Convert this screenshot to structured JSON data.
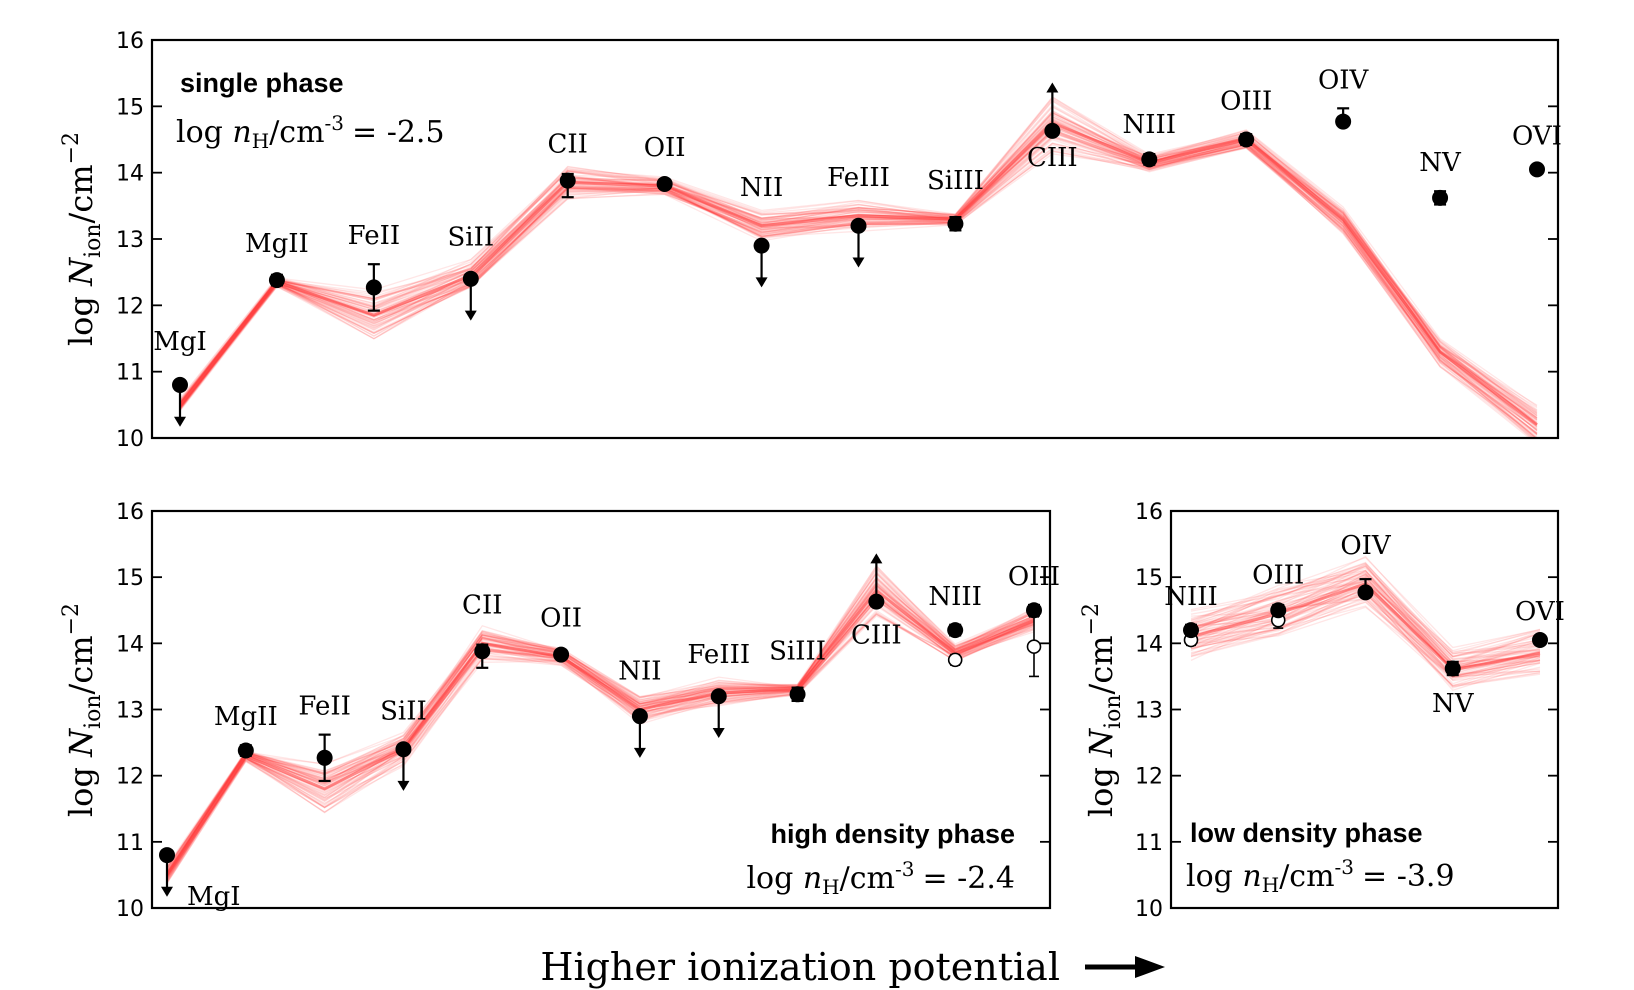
{
  "x_axis_label": "Higher ionization potential",
  "chart_data": [
    {
      "id": "single",
      "type": "line",
      "title": "single phase",
      "density_label": "log nH/cm-3 = -2.5",
      "density_prefix": "log ",
      "density_n": "n",
      "density_sub": "H",
      "density_unit": "/cm",
      "density_exp": "-3",
      "density_value": "= -2.5",
      "ylabel": "log N_ion/cm^-2",
      "ylim": [
        10,
        16
      ],
      "yticks": [
        "10",
        "11",
        "12",
        "13",
        "14",
        "15",
        "16"
      ],
      "ions": [
        "MgI",
        "MgII",
        "FeII",
        "SiII",
        "CII",
        "OII",
        "NII",
        "FeIII",
        "SiIII",
        "CIII",
        "NIII",
        "OIII",
        "OIV",
        "NV",
        "OVI"
      ],
      "observed": [
        10.8,
        12.38,
        12.27,
        12.4,
        13.88,
        13.83,
        12.9,
        13.2,
        13.23,
        14.63,
        14.2,
        14.5,
        14.77,
        13.62,
        14.05
      ],
      "err_lo": [
        0,
        0.08,
        0.35,
        0,
        0.25,
        0.05,
        0,
        0,
        0.1,
        0,
        0.08,
        0.08,
        0,
        0.1,
        0
      ],
      "err_hi": [
        0,
        0.08,
        0.35,
        0,
        0.1,
        0.05,
        0,
        0,
        0.1,
        0,
        0.08,
        0.08,
        0.2,
        0.1,
        0
      ],
      "limit": [
        "upper",
        "",
        "",
        "upper",
        "",
        "",
        "upper",
        "upper",
        "",
        "lower",
        "",
        "",
        "",
        "",
        ""
      ],
      "model_median": [
        10.5,
        12.35,
        11.85,
        12.45,
        13.85,
        13.8,
        13.2,
        13.35,
        13.3,
        14.75,
        14.15,
        14.5,
        13.3,
        11.3,
        10.2
      ],
      "model_spread": [
        0.1,
        0.08,
        0.45,
        0.25,
        0.3,
        0.15,
        0.25,
        0.25,
        0.1,
        0.5,
        0.15,
        0.15,
        0.25,
        0.25,
        0.35
      ],
      "label_pos": [
        "above",
        "above",
        "above",
        "above",
        "above",
        "above",
        "above",
        "above",
        "above",
        "below",
        "above",
        "above",
        "above",
        "above",
        "above"
      ]
    },
    {
      "id": "high",
      "type": "line",
      "title": "high density phase",
      "density_prefix": "log ",
      "density_n": "n",
      "density_sub": "H",
      "density_unit": "/cm",
      "density_exp": "-3",
      "density_value": "= -2.4",
      "ylabel": "log N_ion/cm^-2",
      "ylim": [
        10,
        16
      ],
      "yticks": [
        "10",
        "11",
        "12",
        "13",
        "14",
        "15",
        "16"
      ],
      "ions": [
        "MgI",
        "MgII",
        "FeII",
        "SiII",
        "CII",
        "OII",
        "NII",
        "FeIII",
        "SiIII",
        "CIII",
        "NIII",
        "OIII"
      ],
      "observed": [
        10.8,
        12.38,
        12.27,
        12.4,
        13.88,
        13.83,
        12.9,
        13.2,
        13.23,
        14.63,
        14.2,
        14.5
      ],
      "err_lo": [
        0,
        0.08,
        0.35,
        0,
        0.25,
        0.05,
        0,
        0,
        0.1,
        0,
        0.08,
        0.08
      ],
      "err_hi": [
        0,
        0.08,
        0.35,
        0,
        0.1,
        0.05,
        0,
        0,
        0.1,
        0,
        0.08,
        0.08
      ],
      "limit": [
        "upper",
        "",
        "",
        "upper",
        "",
        "",
        "upper",
        "upper",
        "",
        "lower",
        "",
        ""
      ],
      "open_points": [
        null,
        null,
        null,
        null,
        null,
        null,
        null,
        null,
        null,
        null,
        13.75,
        13.95
      ],
      "open_err": [
        0,
        0,
        0,
        0,
        0,
        0,
        0,
        0,
        0,
        0,
        0.08,
        0.45
      ],
      "model_median": [
        10.5,
        12.3,
        11.8,
        12.4,
        14.0,
        13.8,
        13.0,
        13.25,
        13.3,
        14.8,
        13.85,
        14.35
      ],
      "model_spread": [
        0.15,
        0.1,
        0.45,
        0.3,
        0.3,
        0.15,
        0.25,
        0.25,
        0.1,
        0.45,
        0.15,
        0.2
      ],
      "label_pos": [
        "below-right",
        "above",
        "above",
        "above",
        "above",
        "above",
        "above",
        "above",
        "above",
        "below",
        "above",
        "above"
      ]
    },
    {
      "id": "low",
      "type": "line",
      "title": "low density phase",
      "density_prefix": "log ",
      "density_n": "n",
      "density_sub": "H",
      "density_unit": "/cm",
      "density_exp": "-3",
      "density_value": "= -3.9",
      "ylabel": "log N_ion/cm^-2",
      "ylim": [
        10,
        16
      ],
      "yticks": [
        "10",
        "11",
        "12",
        "13",
        "14",
        "15",
        "16"
      ],
      "ions": [
        "NIII",
        "OIII",
        "OIV",
        "NV",
        "OVI"
      ],
      "observed": [
        14.2,
        14.5,
        14.77,
        13.62,
        14.05
      ],
      "err_lo": [
        0.08,
        0.08,
        0,
        0.1,
        0
      ],
      "err_hi": [
        0.08,
        0.08,
        0.2,
        0.1,
        0
      ],
      "limit": [
        "",
        "",
        "",
        "",
        ""
      ],
      "open_points": [
        14.05,
        14.35,
        null,
        null,
        null
      ],
      "open_err": [
        0.08,
        0.12,
        0,
        0,
        0
      ],
      "model_median": [
        14.1,
        14.45,
        14.9,
        13.6,
        13.85
      ],
      "model_spread": [
        0.45,
        0.45,
        0.45,
        0.35,
        0.4
      ],
      "label_pos": [
        "above",
        "above",
        "above",
        "below",
        "above"
      ]
    }
  ],
  "colors": {
    "model": "#ff4040",
    "points": "#000000"
  }
}
